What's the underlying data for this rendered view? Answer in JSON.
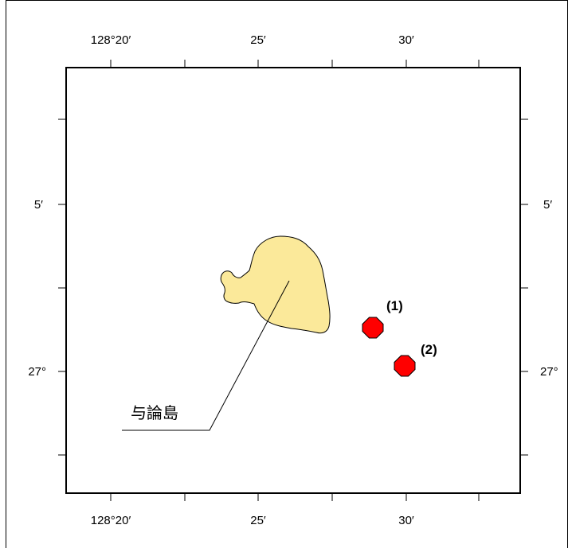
{
  "map": {
    "axis_labels": {
      "top": [
        "128°20′",
        "25′",
        "30′"
      ],
      "bottom": [
        "128°20′",
        "25′",
        "30′"
      ],
      "left": [
        "5′",
        "27°"
      ],
      "right": [
        "5′",
        "27°"
      ]
    },
    "island": {
      "name": "与論島",
      "fill_color": "#FBE99A"
    },
    "markers": [
      {
        "label": "(1)",
        "color": "#FF0000"
      },
      {
        "label": "(2)",
        "color": "#FF0000"
      }
    ]
  }
}
